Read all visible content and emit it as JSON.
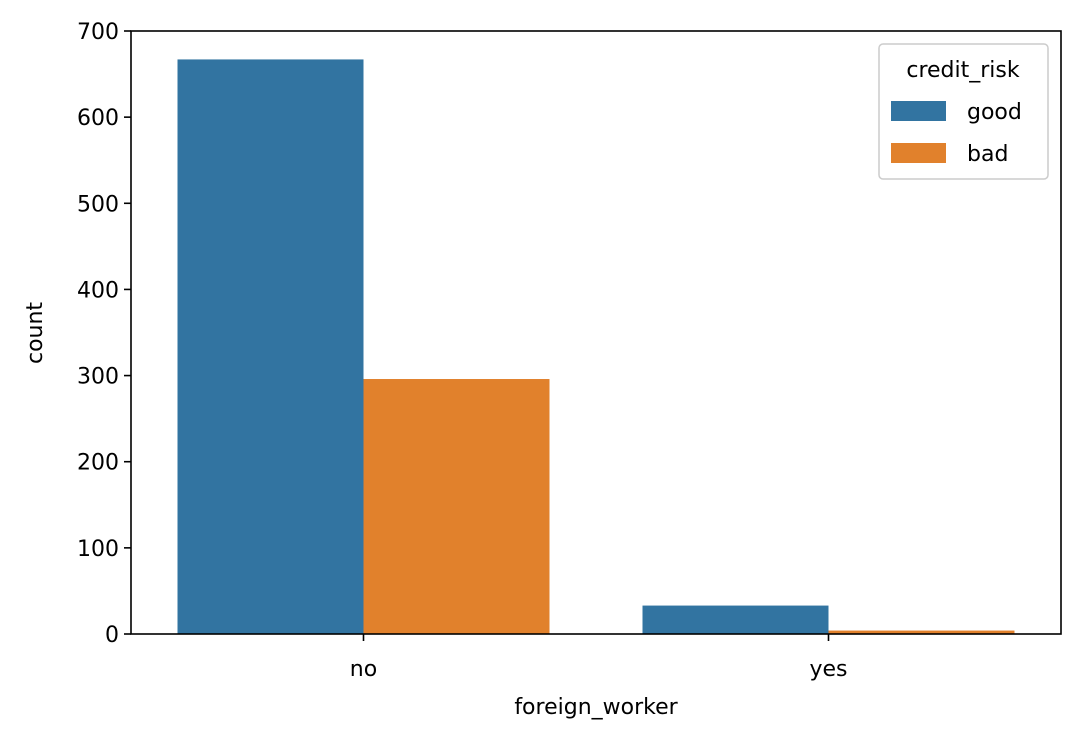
{
  "chart_data": {
    "type": "bar",
    "title": "",
    "xlabel": "foreign_worker",
    "ylabel": "count",
    "categories": [
      "no",
      "yes"
    ],
    "series": [
      {
        "name": "good",
        "color": "#3274a1",
        "values": [
          667,
          33
        ]
      },
      {
        "name": "bad",
        "color": "#e1812c",
        "values": [
          296,
          4
        ]
      }
    ],
    "ylim": [
      0,
      700
    ],
    "yticks": [
      0,
      100,
      200,
      300,
      400,
      500,
      600,
      700
    ],
    "grid": false,
    "legend": {
      "title": "credit_risk",
      "placement": "top-right"
    }
  }
}
